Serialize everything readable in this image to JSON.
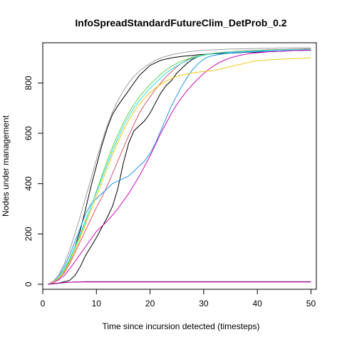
{
  "chart_data": {
    "type": "line",
    "title": "InfoSpreadStandardFutureClim_DetProb_0.2",
    "xlabel": "Time since incursion detected (timesteps)",
    "ylabel": "Nodes under management",
    "xlim": [
      0,
      51
    ],
    "ylim": [
      -20,
      960
    ],
    "xticks": [
      0,
      10,
      20,
      30,
      40,
      50
    ],
    "yticks": [
      0,
      200,
      400,
      600,
      800
    ],
    "grid": false,
    "legend": "none",
    "x": [
      1,
      2,
      3,
      4,
      5,
      6,
      7,
      8,
      9,
      10,
      11,
      12,
      13,
      14,
      15,
      16,
      17,
      18,
      19,
      20,
      21,
      22,
      23,
      24,
      25,
      26,
      27,
      28,
      29,
      30,
      31,
      32,
      33,
      34,
      35,
      36,
      37,
      38,
      39,
      40,
      41,
      42,
      43,
      44,
      45,
      46,
      47,
      48,
      49,
      50
    ],
    "series": [
      {
        "color": "#000000",
        "values": [
          0,
          10,
          25,
          50,
          95,
          150,
          215,
          300,
          390,
          470,
          550,
          620,
          675,
          710,
          740,
          770,
          800,
          830,
          850,
          870,
          880,
          890,
          895,
          900,
          903,
          906,
          908,
          910,
          912,
          914,
          915,
          916,
          917,
          918,
          919,
          920,
          921,
          922,
          922,
          923,
          924,
          925,
          925,
          926,
          927,
          928,
          929,
          929,
          930,
          930
        ]
      },
      {
        "color": "#000000",
        "values": [
          0,
          2,
          5,
          10,
          15,
          35,
          70,
          115,
          150,
          185,
          225,
          265,
          310,
          380,
          480,
          560,
          610,
          630,
          650,
          680,
          720,
          760,
          790,
          810,
          840,
          860,
          880,
          895,
          905,
          912,
          915,
          918,
          920,
          922,
          923,
          925,
          926,
          927,
          928,
          929,
          930,
          931,
          932,
          932,
          933,
          933,
          934,
          934,
          935,
          935
        ]
      },
      {
        "color": "#DF536B",
        "values": [
          0,
          8,
          22,
          45,
          80,
          125,
          170,
          215,
          260,
          305,
          345,
          390,
          440,
          490,
          540,
          590,
          635,
          680,
          715,
          745,
          775,
          800,
          825,
          845,
          865,
          880,
          892,
          900,
          907,
          912,
          916,
          919,
          921,
          923,
          924,
          926,
          927,
          928,
          929,
          930,
          931,
          931,
          932,
          933,
          933,
          934,
          934,
          935,
          935,
          936
        ]
      },
      {
        "color": "#61D04F",
        "values": [
          0,
          9,
          25,
          55,
          95,
          145,
          195,
          250,
          310,
          370,
          430,
          490,
          545,
          595,
          640,
          680,
          715,
          745,
          770,
          795,
          815,
          835,
          852,
          866,
          878,
          888,
          896,
          903,
          908,
          912,
          915,
          918,
          920,
          922,
          924,
          925,
          926,
          927,
          928,
          929,
          930,
          930,
          931,
          932,
          932,
          933,
          933,
          934,
          934,
          935
        ]
      },
      {
        "color": "#2297E6",
        "values": [
          0,
          12,
          35,
          70,
          115,
          170,
          225,
          280,
          320,
          340,
          360,
          380,
          400,
          410,
          420,
          430,
          450,
          470,
          490,
          520,
          560,
          610,
          660,
          710,
          750,
          790,
          825,
          855,
          878,
          895,
          905,
          910,
          914,
          917,
          919,
          921,
          922,
          923,
          924,
          925,
          926,
          926,
          927,
          927,
          928,
          928,
          929,
          929,
          930,
          930
        ]
      },
      {
        "color": "#28E2E5",
        "values": [
          0,
          10,
          28,
          60,
          100,
          150,
          200,
          255,
          310,
          365,
          420,
          475,
          530,
          580,
          625,
          665,
          700,
          730,
          755,
          780,
          800,
          820,
          840,
          855,
          868,
          880,
          890,
          898,
          905,
          910,
          914,
          917,
          919,
          921,
          923,
          924,
          925,
          926,
          927,
          928,
          929,
          929,
          930,
          931,
          931,
          932,
          932,
          933,
          933,
          934
        ]
      },
      {
        "color": "#CD0BBC",
        "values": [
          0,
          7,
          18,
          35,
          60,
          90,
          120,
          150,
          180,
          210,
          230,
          250,
          275,
          300,
          330,
          360,
          395,
          430,
          470,
          510,
          555,
          600,
          640,
          680,
          715,
          745,
          772,
          796,
          818,
          838,
          855,
          870,
          882,
          892,
          900,
          906,
          911,
          915,
          918,
          920,
          922,
          924,
          925,
          926,
          927,
          928,
          929,
          930,
          930,
          931
        ]
      },
      {
        "color": "#F5C710",
        "values": [
          0,
          9,
          24,
          50,
          88,
          135,
          185,
          240,
          295,
          350,
          405,
          460,
          515,
          565,
          610,
          650,
          685,
          715,
          740,
          762,
          780,
          795,
          808,
          818,
          826,
          832,
          836,
          840,
          843,
          846,
          848,
          850,
          855,
          860,
          865,
          870,
          875,
          880,
          885,
          888,
          890,
          892,
          893,
          894,
          895,
          896,
          897,
          898,
          899,
          900
        ]
      },
      {
        "color": "#9E9E9E",
        "values": [
          0,
          12,
          38,
          80,
          135,
          200,
          270,
          345,
          420,
          495,
          565,
          630,
          685,
          730,
          768,
          800,
          826,
          847,
          864,
          878,
          890,
          899,
          906,
          912,
          917,
          921,
          924,
          926,
          928,
          930,
          931,
          932,
          933,
          934,
          935,
          935,
          936,
          936,
          937,
          937,
          938,
          938,
          938,
          939,
          939,
          939,
          940,
          940,
          940,
          940
        ]
      },
      {
        "color": "#000000",
        "values": [
          0,
          2,
          4,
          6,
          8,
          9,
          9,
          10,
          10,
          10,
          10,
          10,
          10,
          10,
          10,
          10,
          10,
          10,
          10,
          10,
          10,
          10,
          10,
          10,
          10,
          10,
          10,
          10,
          10,
          10,
          10,
          10,
          10,
          10,
          10,
          10,
          10,
          10,
          10,
          10,
          10,
          10,
          10,
          10,
          10,
          10,
          10,
          10,
          10,
          10
        ]
      },
      {
        "color": "#CD0BBC",
        "values": [
          0,
          3,
          5,
          7,
          8,
          9,
          9,
          9,
          9,
          9,
          9,
          9,
          9,
          9,
          9,
          9,
          9,
          9,
          9,
          9,
          9,
          9,
          9,
          9,
          9,
          9,
          9,
          9,
          9,
          9,
          9,
          9,
          9,
          9,
          9,
          9,
          9,
          9,
          9,
          9,
          9,
          9,
          9,
          9,
          9,
          9,
          9,
          9,
          9,
          9
        ]
      }
    ]
  }
}
